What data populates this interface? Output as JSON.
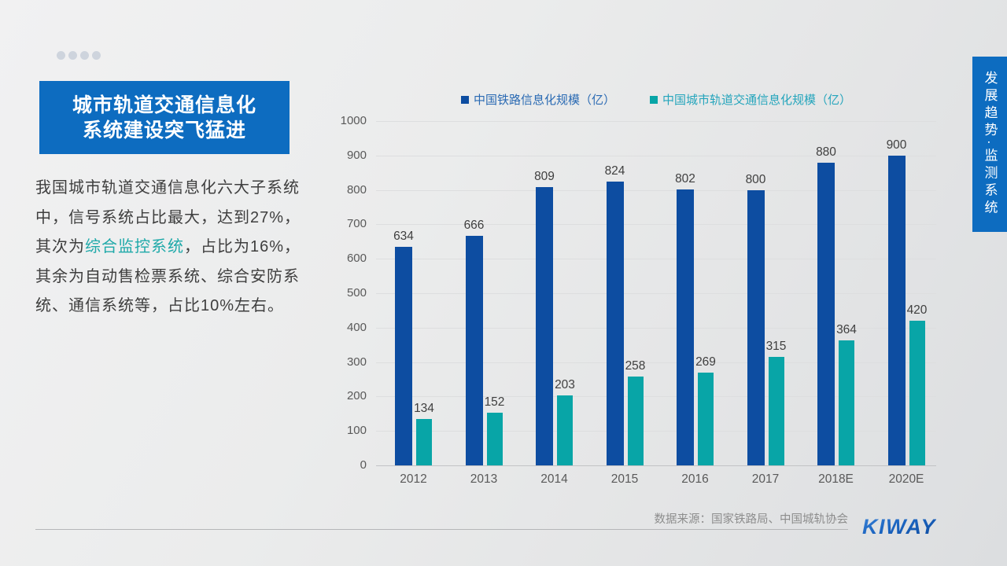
{
  "title": {
    "line1": "城市轨道交通信息化",
    "line2": "系统建设突飞猛进"
  },
  "paragraph": {
    "part1": "我国城市轨道交通信息化六大子系统\n中，信号系统占比最大，达到27%，\n其次为",
    "highlight": "综合监控系统",
    "part2": "，占比为16%，\n其余为自动售检票系统、综合安防系\n统、通信系统等，占比10%左右。"
  },
  "side_banner": {
    "text": "发展趋势·监测系统"
  },
  "chart_data": {
    "type": "bar",
    "categories": [
      "2012",
      "2013",
      "2014",
      "2015",
      "2016",
      "2017",
      "2018E",
      "2020E"
    ],
    "series": [
      {
        "name": "中国铁路信息化规模（亿）",
        "color": "#0d4da1",
        "label_color": "#2a6ab3",
        "values": [
          634,
          666,
          809,
          824,
          802,
          800,
          880,
          900
        ]
      },
      {
        "name": "中国城市轨道交通信息化规模（亿）",
        "color": "#08a5a7",
        "label_color": "#25a5bc",
        "values": [
          134,
          152,
          203,
          258,
          269,
          315,
          364,
          420
        ]
      }
    ],
    "ylim": [
      0,
      1000
    ],
    "ytick_step": 100,
    "grid": true,
    "legend_position": "top"
  },
  "footer": {
    "source": "数据来源：国家铁路局、中国城轨协会",
    "logo": "KIWAY"
  },
  "colors": {
    "accent_blue": "#0d6cc0",
    "bar_blue": "#0d4da1",
    "bar_teal": "#08a5a7",
    "highlight_teal": "#1fa9a9"
  }
}
